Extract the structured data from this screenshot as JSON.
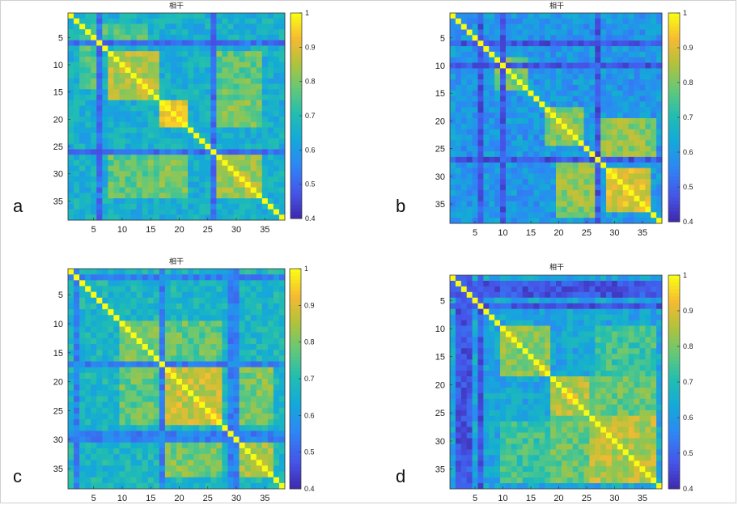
{
  "chart_data": [
    {
      "type": "heatmap",
      "panel": "a",
      "title": "相干",
      "n": 38,
      "xticks": [
        5,
        10,
        15,
        20,
        25,
        30,
        35
      ],
      "yticks": [
        5,
        10,
        15,
        20,
        25,
        30,
        35
      ],
      "colorbar": {
        "min": 0.4,
        "max": 1.0,
        "ticks": [
          0.4,
          0.5,
          0.6,
          0.7,
          0.8,
          0.9,
          1
        ]
      },
      "base": 0.66,
      "blocks": [
        {
          "rows": [
            8,
            16
          ],
          "cols": [
            8,
            16
          ],
          "value": 0.86
        },
        {
          "rows": [
            17,
            21
          ],
          "cols": [
            17,
            21
          ],
          "value": 0.94
        },
        {
          "rows": [
            27,
            34
          ],
          "cols": [
            27,
            34
          ],
          "value": 0.84
        },
        {
          "rows": [
            8,
            16
          ],
          "cols": [
            27,
            34
          ],
          "value": 0.78
        },
        {
          "rows": [
            17,
            21
          ],
          "cols": [
            27,
            34
          ],
          "value": 0.8
        },
        {
          "rows": [
            3,
            5
          ],
          "cols": [
            3,
            14
          ],
          "value": 0.76
        }
      ],
      "low_lines": [
        6,
        26
      ],
      "low_value": 0.52,
      "diagonal": 1.0
    },
    {
      "type": "heatmap",
      "panel": "b",
      "title": "相干",
      "n": 38,
      "xticks": [
        5,
        10,
        15,
        20,
        25,
        30,
        35
      ],
      "yticks": [
        5,
        10,
        15,
        20,
        25,
        30,
        35
      ],
      "colorbar": {
        "min": 0.4,
        "max": 1.0,
        "ticks": [
          0.4,
          0.5,
          0.6,
          0.7,
          0.8,
          0.9,
          1
        ]
      },
      "base": 0.6,
      "blocks": [
        {
          "rows": [
            9,
            14
          ],
          "cols": [
            9,
            14
          ],
          "value": 0.8
        },
        {
          "rows": [
            18,
            24
          ],
          "cols": [
            18,
            24
          ],
          "value": 0.82
        },
        {
          "rows": [
            29,
            36
          ],
          "cols": [
            29,
            36
          ],
          "value": 0.9
        },
        {
          "rows": [
            20,
            26
          ],
          "cols": [
            28,
            35
          ],
          "value": 0.82
        },
        {
          "rows": [
            30,
            37
          ],
          "cols": [
            20,
            26
          ],
          "value": 0.8
        }
      ],
      "low_lines": [
        6,
        10,
        27
      ],
      "low_value": 0.48,
      "diagonal": 1.0
    },
    {
      "type": "heatmap",
      "panel": "c",
      "title": "相干",
      "n": 38,
      "xticks": [
        5,
        10,
        15,
        20,
        25,
        30,
        35
      ],
      "yticks": [
        5,
        10,
        15,
        20,
        25,
        30,
        35
      ],
      "colorbar": {
        "min": 0.4,
        "max": 1.0,
        "ticks": [
          0.4,
          0.5,
          0.6,
          0.7,
          0.8,
          0.9,
          1
        ]
      },
      "base": 0.68,
      "blocks": [
        {
          "rows": [
            18,
            27
          ],
          "cols": [
            18,
            27
          ],
          "value": 0.88
        },
        {
          "rows": [
            31,
            36
          ],
          "cols": [
            31,
            36
          ],
          "value": 0.84
        },
        {
          "rows": [
            10,
            16
          ],
          "cols": [
            10,
            16
          ],
          "value": 0.8
        },
        {
          "rows": [
            31,
            36
          ],
          "cols": [
            18,
            27
          ],
          "value": 0.8
        },
        {
          "rows": [
            10,
            16
          ],
          "cols": [
            18,
            27
          ],
          "value": 0.78
        }
      ],
      "low_lines": [
        2,
        17,
        29,
        30
      ],
      "low_value": 0.55,
      "diagonal": 1.0
    },
    {
      "type": "heatmap",
      "panel": "d",
      "title": "相干",
      "n": 38,
      "xticks": [
        5,
        10,
        15,
        20,
        25,
        30,
        35
      ],
      "yticks": [
        5,
        10,
        15,
        20,
        25,
        30,
        35
      ],
      "colorbar": {
        "min": 0.4,
        "max": 1.0,
        "ticks": [
          0.4,
          0.5,
          0.6,
          0.7,
          0.8,
          0.9,
          1
        ]
      },
      "base": 0.63,
      "blocks": [
        {
          "rows": [
            10,
            18
          ],
          "cols": [
            10,
            18
          ],
          "value": 0.82
        },
        {
          "rows": [
            19,
            25
          ],
          "cols": [
            19,
            25
          ],
          "value": 0.86
        },
        {
          "rows": [
            26,
            37
          ],
          "cols": [
            26,
            37
          ],
          "value": 0.86
        },
        {
          "rows": [
            19,
            37
          ],
          "cols": [
            19,
            37
          ],
          "value": 0.78
        },
        {
          "rows": [
            27,
            37
          ],
          "cols": [
            10,
            18
          ],
          "value": 0.74
        }
      ],
      "low_lines": [
        2,
        3,
        4,
        6
      ],
      "low_value": 0.48,
      "diagonal": 1.0
    }
  ],
  "panel_labels": [
    "a",
    "b",
    "c",
    "d"
  ]
}
